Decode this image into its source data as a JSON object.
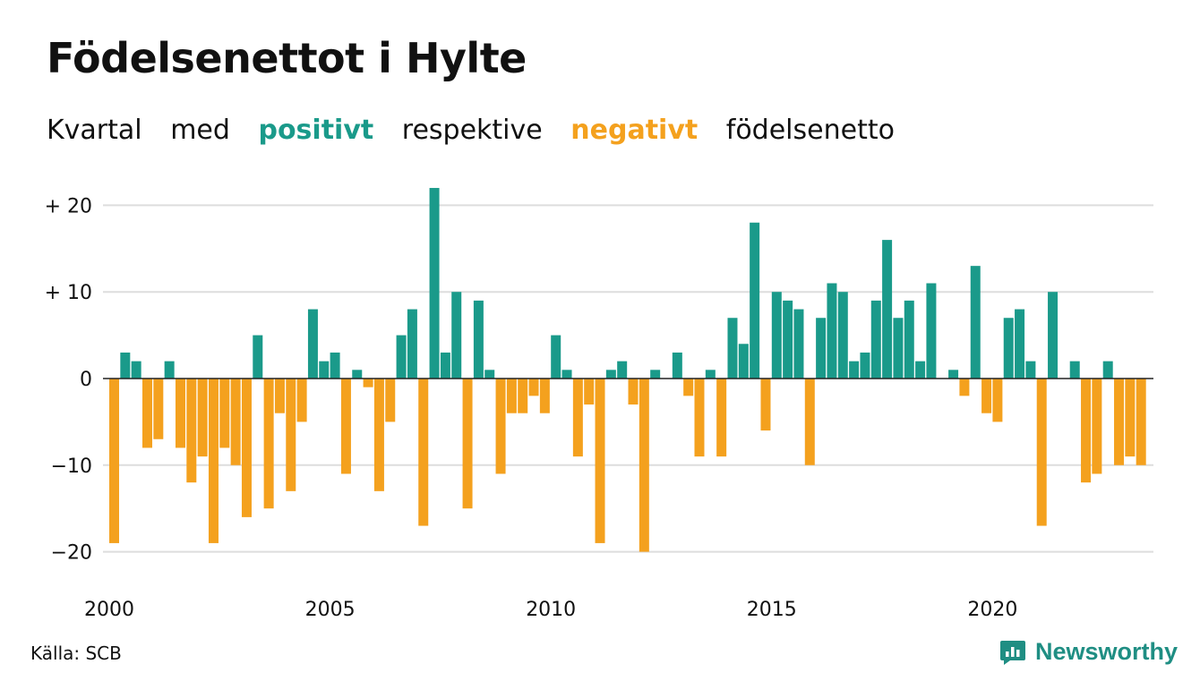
{
  "title": "Födelsenettot i Hylte",
  "subtitle": {
    "w1": "Kvartal",
    "w2": "med",
    "positive": "positivt",
    "w3": "respektive",
    "negative": "negativt",
    "w4": "födelsenetto"
  },
  "source": "Källa: SCB",
  "brand": "Newsworthy",
  "colors": {
    "positive": "#1a9a8a",
    "negative": "#f4a11e",
    "grid": "#dddddd",
    "zero": "#222222",
    "brand": "#1f8e83"
  },
  "icons": {
    "brand_logo": "newsworthy-logo-icon"
  },
  "chart_data": {
    "type": "bar",
    "x_start": "2000 Q1",
    "frequency": "quarterly",
    "x_tick_labels": [
      "2000",
      "2005",
      "2010",
      "2015",
      "2020"
    ],
    "y_tick_labels": [
      "+ 20",
      "+ 10",
      "0",
      "−10",
      "−20"
    ],
    "y_ticks": [
      20,
      10,
      0,
      -10,
      -20
    ],
    "ylim": [
      -23,
      23
    ],
    "grid": true,
    "values": [
      -19,
      3,
      2,
      -8,
      -7,
      2,
      -8,
      -12,
      -9,
      -19,
      -8,
      -10,
      -16,
      5,
      -15,
      -4,
      -13,
      -5,
      8,
      2,
      3,
      -11,
      1,
      -1,
      -13,
      -5,
      5,
      8,
      -17,
      22,
      3,
      10,
      -15,
      9,
      1,
      -11,
      -4,
      -4,
      -2,
      -4,
      5,
      1,
      -9,
      -3,
      -19,
      1,
      2,
      -3,
      -20,
      1,
      0,
      3,
      -2,
      -9,
      1,
      -9,
      7,
      4,
      18,
      -6,
      10,
      9,
      8,
      -10,
      7,
      11,
      10,
      2,
      3,
      9,
      16,
      7,
      9,
      2,
      11,
      0,
      1,
      -2,
      13,
      -4,
      -5,
      7,
      8,
      2,
      -17,
      10,
      0,
      2,
      -12,
      -11,
      2,
      -10,
      -9,
      -10
    ]
  }
}
